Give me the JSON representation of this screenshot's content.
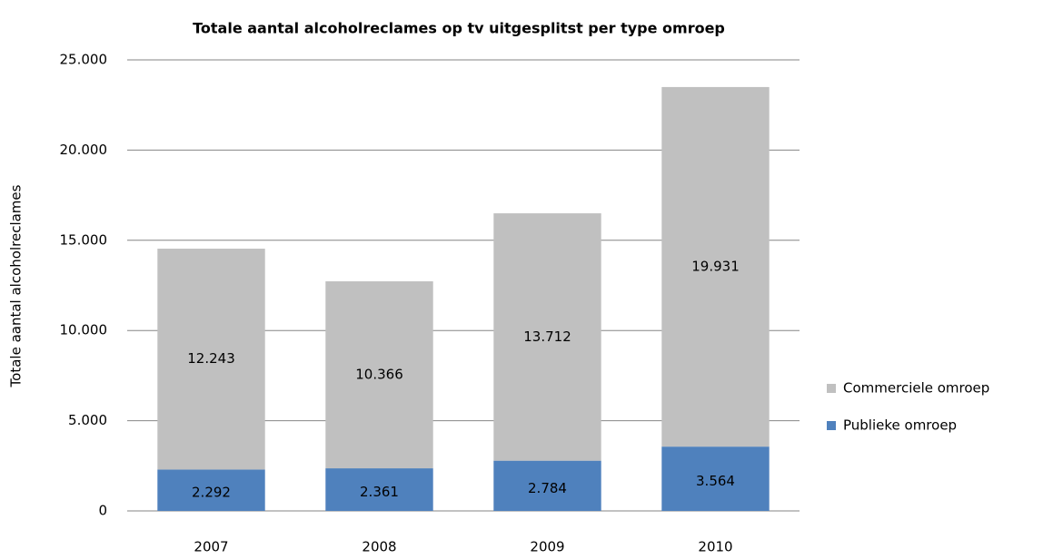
{
  "chart_data": {
    "type": "stacked_bar",
    "title": "Totale aantal alcoholreclames op tv uitgesplitst per type omroep",
    "y_label": "Totale aantal alcoholreclames",
    "categories": [
      "2007",
      "2008",
      "2009",
      "2010"
    ],
    "series": [
      {
        "name": "Publieke omroep",
        "color": "#4f81bd",
        "values": [
          2292,
          2361,
          2784,
          3564
        ],
        "value_labels": [
          "2.292",
          "2.361",
          "2.784",
          "3.564"
        ]
      },
      {
        "name": "Commerciele omroep",
        "color": "#c0c0c0",
        "values": [
          12243,
          10366,
          13712,
          19931
        ],
        "value_labels": [
          "12.243",
          "10.366",
          "13.712",
          "19.931"
        ]
      }
    ],
    "ylim": [
      0,
      25000
    ],
    "yticks": [
      0,
      {
        "value": 5000,
        "label": "5.000"
      },
      {
        "value": 10000,
        "label": "10.000"
      },
      {
        "value": 15000,
        "label": "15.000"
      },
      {
        "value": 20000,
        "label": "20.000"
      },
      {
        "value": 25000,
        "label": "25.000"
      }
    ],
    "grid": true,
    "legend": "right"
  }
}
